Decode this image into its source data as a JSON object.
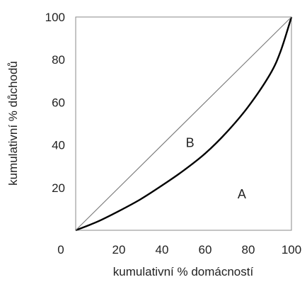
{
  "chart_data": {
    "type": "line",
    "xlabel": "kumulativní % domácností",
    "ylabel": "kumulativní % důchodů",
    "xlim": [
      0,
      100
    ],
    "ylim": [
      0,
      100
    ],
    "origin_tick": "0",
    "x_ticks": [
      "20",
      "40",
      "60",
      "80",
      "100"
    ],
    "y_ticks": [
      "20",
      "40",
      "60",
      "80",
      "100"
    ],
    "grid": false,
    "legend": "none",
    "series": [
      {
        "x": [
          0,
          10,
          20,
          30,
          40,
          50,
          60,
          70,
          80,
          90,
          95,
          100
        ],
        "y": [
          0,
          4,
          9,
          14.5,
          21,
          28,
          36,
          46,
          58,
          73,
          84,
          100
        ],
        "color": "#000000"
      },
      {
        "x": [
          0,
          100
        ],
        "y": [
          0,
          100
        ],
        "color": "#777777"
      }
    ],
    "annotations": [
      {
        "text": "B",
        "x": 53,
        "y": 41
      },
      {
        "text": "A",
        "x": 77,
        "y": 17
      }
    ]
  }
}
